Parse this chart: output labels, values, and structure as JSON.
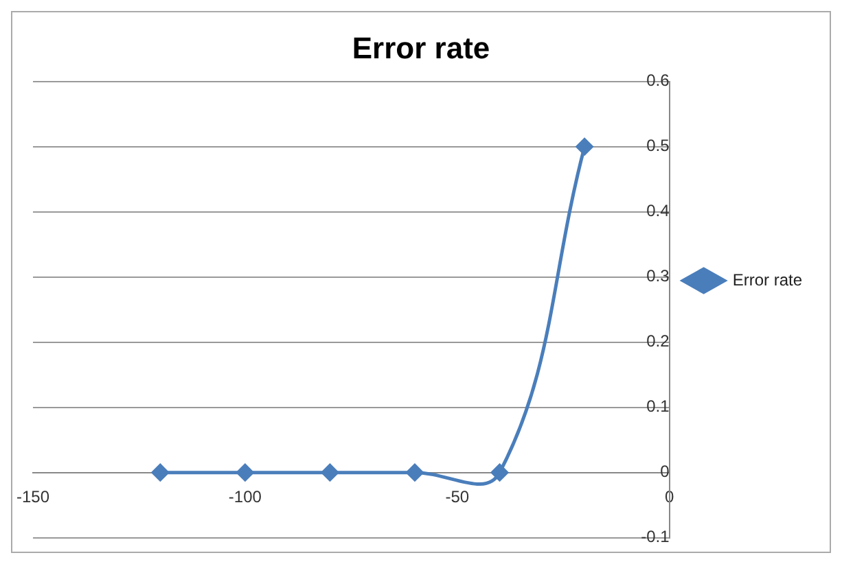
{
  "chart_data": {
    "type": "line",
    "title": "Error rate",
    "x": [
      -120,
      -100,
      -80,
      -60,
      -40,
      -20
    ],
    "series": [
      {
        "name": "Error rate",
        "color": "#4a7ebb",
        "values": [
          0,
          0,
          0,
          0,
          0,
          0.5
        ]
      }
    ],
    "xlim": [
      -150,
      0
    ],
    "xticks": [
      -150,
      -100,
      -50,
      0
    ],
    "ylim": [
      -0.1,
      0.6
    ],
    "yticks": [
      -0.1,
      0,
      0.1,
      0.2,
      0.3,
      0.4,
      0.5,
      0.6
    ],
    "grid": "y",
    "legend": "right",
    "marker": "diamond",
    "line_style": "solid"
  }
}
